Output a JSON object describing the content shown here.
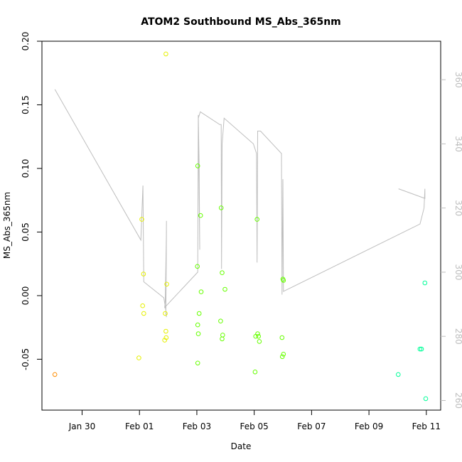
{
  "chart_data": {
    "type": "scatter",
    "title": "ATOM2 Southbound MS_Abs_365nm",
    "xlabel": "Date",
    "ylabel": "MS_Abs_365nm",
    "x_ticks": [
      "Jan 30",
      "Feb 01",
      "Feb 03",
      "Feb 05",
      "Feb 07",
      "Feb 09",
      "Feb 11"
    ],
    "x_tick_days": [
      0,
      2,
      4,
      6,
      8,
      10,
      12
    ],
    "xlim_days": [
      -1.4,
      12.5
    ],
    "y_ticks": [
      -0.05,
      0.0,
      0.05,
      0.1,
      0.15,
      0.2
    ],
    "y_tick_labels": [
      "-0.05",
      "0.00",
      "0.05",
      "0.10",
      "0.15",
      "0.20"
    ],
    "ylim": [
      -0.09,
      0.2
    ],
    "y2_ticks": [
      260,
      280,
      300,
      320,
      340,
      360
    ],
    "y2lim": [
      257,
      372
    ],
    "grid": false,
    "colors": {
      "line": "#bebebe",
      "orange": "#ff8c00",
      "yellow": "#e6f000",
      "green": "#66ff00",
      "teal": "#00ff99"
    },
    "points": [
      {
        "x": -0.95,
        "y": -0.062,
        "c": "#ff8c00"
      },
      {
        "x": 1.98,
        "y": -0.049,
        "c": "#e6f000"
      },
      {
        "x": 2.08,
        "y": 0.06,
        "c": "#e6f000"
      },
      {
        "x": 2.14,
        "y": 0.017,
        "c": "#e6f000"
      },
      {
        "x": 2.11,
        "y": -0.008,
        "c": "#e6f000"
      },
      {
        "x": 2.15,
        "y": -0.014,
        "c": "#e6f000"
      },
      {
        "x": 2.92,
        "y": 0.19,
        "c": "#e6f000"
      },
      {
        "x": 2.95,
        "y": 0.009,
        "c": "#e6f000"
      },
      {
        "x": 2.9,
        "y": -0.014,
        "c": "#e6f000"
      },
      {
        "x": 2.92,
        "y": -0.028,
        "c": "#e6f000"
      },
      {
        "x": 2.93,
        "y": -0.033,
        "c": "#e6f000"
      },
      {
        "x": 2.88,
        "y": -0.035,
        "c": "#e6f000"
      },
      {
        "x": 4.03,
        "y": 0.102,
        "c": "#66ff00"
      },
      {
        "x": 4.13,
        "y": 0.063,
        "c": "#66ff00"
      },
      {
        "x": 4.02,
        "y": 0.023,
        "c": "#66ff00"
      },
      {
        "x": 4.15,
        "y": 0.003,
        "c": "#66ff00"
      },
      {
        "x": 4.08,
        "y": -0.014,
        "c": "#66ff00"
      },
      {
        "x": 4.03,
        "y": -0.023,
        "c": "#66ff00"
      },
      {
        "x": 4.05,
        "y": -0.03,
        "c": "#66ff00"
      },
      {
        "x": 4.03,
        "y": -0.053,
        "c": "#66ff00"
      },
      {
        "x": 4.85,
        "y": 0.069,
        "c": "#66ff00"
      },
      {
        "x": 4.88,
        "y": 0.018,
        "c": "#66ff00"
      },
      {
        "x": 4.98,
        "y": 0.005,
        "c": "#66ff00"
      },
      {
        "x": 4.83,
        "y": -0.02,
        "c": "#66ff00"
      },
      {
        "x": 4.9,
        "y": -0.031,
        "c": "#66ff00"
      },
      {
        "x": 4.88,
        "y": -0.034,
        "c": "#66ff00"
      },
      {
        "x": 6.1,
        "y": 0.06,
        "c": "#66ff00"
      },
      {
        "x": 6.05,
        "y": -0.032,
        "c": "#66ff00"
      },
      {
        "x": 6.12,
        "y": -0.03,
        "c": "#66ff00"
      },
      {
        "x": 6.15,
        "y": -0.032,
        "c": "#66ff00"
      },
      {
        "x": 6.18,
        "y": -0.036,
        "c": "#66ff00"
      },
      {
        "x": 6.03,
        "y": -0.06,
        "c": "#66ff00"
      },
      {
        "x": 7.0,
        "y": 0.013,
        "c": "#66ff00"
      },
      {
        "x": 7.02,
        "y": 0.012,
        "c": "#66ff00"
      },
      {
        "x": 6.97,
        "y": -0.033,
        "c": "#66ff00"
      },
      {
        "x": 7.02,
        "y": -0.046,
        "c": "#66ff00"
      },
      {
        "x": 6.98,
        "y": -0.048,
        "c": "#66ff00"
      },
      {
        "x": 11.02,
        "y": -0.062,
        "c": "#00ff99"
      },
      {
        "x": 11.78,
        "y": -0.042,
        "c": "#00ff99"
      },
      {
        "x": 11.83,
        "y": -0.042,
        "c": "#00ff99"
      },
      {
        "x": 11.95,
        "y": 0.01,
        "c": "#00ff99"
      },
      {
        "x": 11.98,
        "y": -0.081,
        "c": "#00ff99"
      }
    ],
    "line_y2": [
      [
        -0.95,
        357
      ],
      [
        2.05,
        310
      ],
      [
        2.12,
        327
      ],
      [
        2.15,
        297
      ],
      [
        2.85,
        292
      ],
      [
        2.92,
        288
      ],
      [
        2.94,
        316
      ],
      [
        2.92,
        287
      ],
      [
        2.94,
        286
      ],
      [
        2.92,
        288
      ],
      [
        2.94,
        313
      ],
      [
        2.9,
        291
      ],
      [
        2.88,
        289
      ],
      [
        4.03,
        300
      ],
      [
        4.05,
        349
      ],
      [
        4.08,
        333
      ],
      [
        4.1,
        307
      ],
      [
        4.05,
        348
      ],
      [
        4.12,
        350
      ],
      [
        4.8,
        346
      ],
      [
        4.85,
        346
      ],
      [
        4.86,
        301
      ],
      [
        4.88,
        340
      ],
      [
        4.95,
        348
      ],
      [
        5.97,
        340
      ],
      [
        6.08,
        337
      ],
      [
        6.1,
        303
      ],
      [
        6.12,
        344
      ],
      [
        6.22,
        344
      ],
      [
        6.95,
        337
      ],
      [
        6.97,
        293
      ],
      [
        7.0,
        329
      ],
      [
        7.02,
        294
      ],
      [
        11.78,
        315
      ],
      [
        11.92,
        320
      ],
      [
        11.95,
        326
      ],
      [
        11.95,
        323
      ],
      [
        11.03,
        326
      ]
    ]
  }
}
